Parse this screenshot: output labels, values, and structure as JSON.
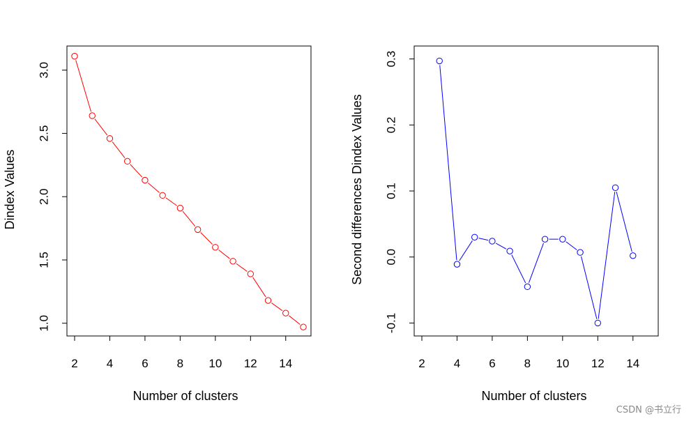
{
  "chart_data": [
    {
      "type": "line",
      "xlabel": "Number of clusters",
      "ylabel": "Dindex Values",
      "xlim": [
        2,
        15
      ],
      "ylim": [
        0.96,
        3.13
      ],
      "x_ticks": [
        2,
        4,
        6,
        8,
        10,
        12,
        14
      ],
      "y_ticks": [
        1.0,
        1.5,
        2.0,
        2.5,
        3.0
      ],
      "y_tick_labels": [
        "1.0",
        "1.5",
        "2.0",
        "2.5",
        "3.0"
      ],
      "color": "#ff0000",
      "x": [
        2,
        3,
        4,
        5,
        6,
        7,
        8,
        9,
        10,
        11,
        12,
        13,
        14,
        15
      ],
      "y": [
        3.11,
        2.64,
        2.46,
        2.28,
        2.13,
        2.01,
        1.91,
        1.74,
        1.6,
        1.49,
        1.39,
        1.18,
        1.08,
        0.97
      ]
    },
    {
      "type": "line",
      "xlabel": "Number of clusters",
      "ylabel": "Second differences Dindex Values",
      "xlim": [
        2,
        15
      ],
      "ylim": [
        -0.108,
        0.308
      ],
      "x_ticks": [
        2,
        4,
        6,
        8,
        10,
        12,
        14
      ],
      "y_ticks": [
        -0.1,
        0.0,
        0.1,
        0.2,
        0.3
      ],
      "y_tick_labels": [
        "-0.1",
        "0.0",
        "0.1",
        "0.2",
        "0.3"
      ],
      "color": "#0000ff",
      "x": [
        3,
        4,
        5,
        6,
        7,
        8,
        9,
        10,
        11,
        12,
        13,
        14
      ],
      "y": [
        0.297,
        -0.011,
        0.03,
        0.024,
        0.009,
        -0.045,
        0.027,
        0.027,
        0.007,
        -0.1,
        0.105,
        0.002
      ]
    }
  ],
  "watermark": "CSDN @书立行"
}
